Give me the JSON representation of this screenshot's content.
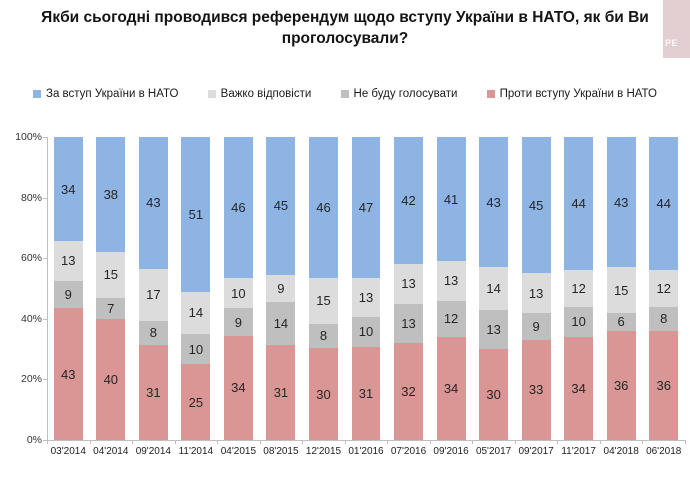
{
  "page": {
    "title": "Якби сьогодні проводився референдум щодо вступу України в НАТО, як би Ви проголосували?",
    "logo_text": "РЕ"
  },
  "chart_data": {
    "type": "bar",
    "variant": "stacked-100-percent",
    "title": "Якби сьогодні проводився референдум щодо вступу України в НАТО, як би Ви проголосували?",
    "xlabel": "",
    "ylabel": "",
    "ylim": [
      0,
      100
    ],
    "grid": false,
    "legend_position": "top",
    "y_ticks": [
      "100%",
      "80%",
      "60%",
      "40%",
      "20%",
      "0%"
    ],
    "categories": [
      "03'2014",
      "04'2014",
      "09'2014",
      "11'2014",
      "04'2015",
      "08'2015",
      "12'2015",
      "01'2016",
      "07'2016",
      "09'2016",
      "05'2017",
      "09'2017",
      "11'2017",
      "04'2018",
      "06'2018"
    ],
    "series": [
      {
        "name": "За вступ України в НАТО",
        "color": "#8db4e2",
        "values": [
          34,
          38,
          43,
          51,
          46,
          45,
          46,
          47,
          42,
          41,
          43,
          45,
          44,
          43,
          44
        ]
      },
      {
        "name": "Важко відповісти",
        "color": "#dcdcdc",
        "values": [
          13,
          15,
          17,
          14,
          10,
          9,
          15,
          13,
          13,
          13,
          14,
          13,
          12,
          15,
          12
        ]
      },
      {
        "name": "Не буду голосувати",
        "color": "#bfbfbf",
        "values": [
          9,
          7,
          8,
          10,
          9,
          14,
          8,
          10,
          13,
          12,
          13,
          9,
          10,
          6,
          8
        ]
      },
      {
        "name": "Проти вступу України в НАТО",
        "color": "#d99694",
        "values": [
          43,
          40,
          31,
          25,
          34,
          31,
          30,
          31,
          32,
          34,
          30,
          33,
          34,
          36,
          36
        ]
      }
    ],
    "stack_order_bottom_to_top": [
      "Проти вступу України в НАТО",
      "Не буду голосувати",
      "Важко відповісти",
      "За вступ України в НАТО"
    ]
  }
}
